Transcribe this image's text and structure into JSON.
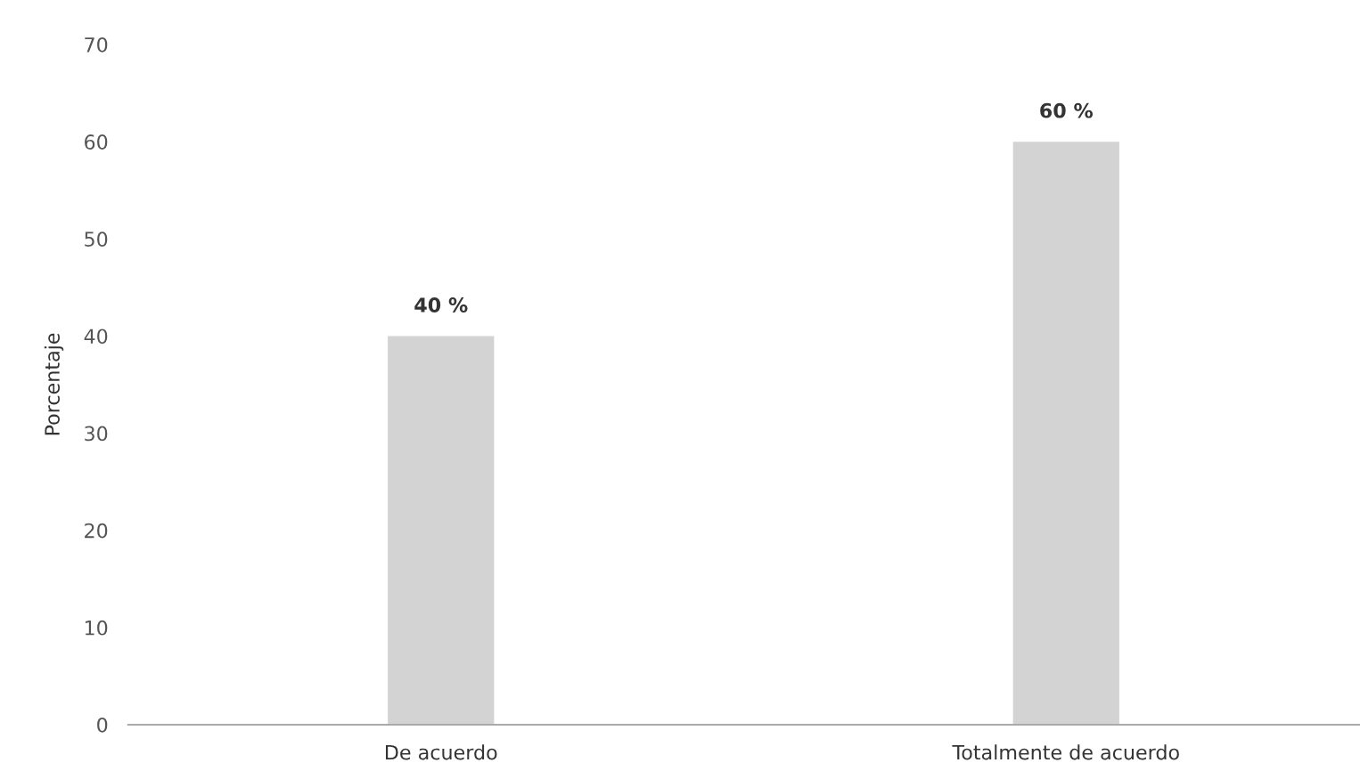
{
  "chart_data": {
    "type": "bar",
    "ylabel": "Porcentaje",
    "categories": [
      "De acuerdo",
      "Totalmente de acuerdo"
    ],
    "values": [
      40,
      60
    ],
    "color": "#d3d3d3",
    "value_labels": [
      "40 %",
      "60 %"
    ],
    "ylim": [
      0,
      70
    ],
    "yticks": [
      0,
      10,
      20,
      30,
      40,
      50,
      60,
      70
    ],
    "grid": false
  }
}
